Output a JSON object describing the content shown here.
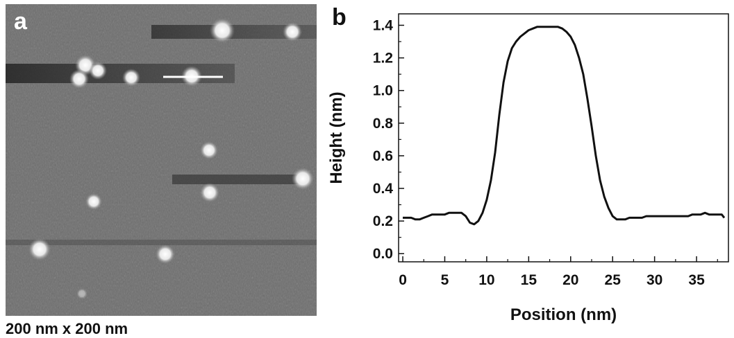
{
  "panel_a": {
    "letter": "a",
    "scale_caption": "200 nm x 200 nm"
  },
  "panel_b": {
    "letter": "b"
  },
  "colors": {
    "afm_background": "#6a6a6a",
    "particle": "#f4f4f4",
    "trace": "#111111",
    "profile_line": "#ffffff"
  },
  "chart_data": {
    "type": "line",
    "xlabel": "Position (nm)",
    "ylabel": "Height (nm)",
    "xlim": [
      -0.5,
      38.8
    ],
    "ylim": [
      -0.05,
      1.47
    ],
    "xticks": [
      0,
      5,
      10,
      15,
      20,
      25,
      30,
      35
    ],
    "yticks": [
      0.0,
      0.2,
      0.4,
      0.6,
      0.8,
      1.0,
      1.2,
      1.4
    ],
    "ytick_labels": [
      "0.0",
      "0.2",
      "0.4",
      "0.6",
      "0.8",
      "1.0",
      "1.2",
      "1.4"
    ],
    "grid": false,
    "series": [
      {
        "x": [
          0,
          0.5,
          1,
          1.5,
          2,
          2.5,
          3,
          3.5,
          4,
          4.5,
          5,
          5.5,
          6,
          6.5,
          7,
          7.5,
          8,
          8.5,
          9,
          9.5,
          10,
          10.5,
          11,
          11.5,
          12,
          12.5,
          13,
          13.5,
          14,
          14.5,
          15,
          15.5,
          16,
          16.5,
          17,
          17.5,
          18,
          18.5,
          19,
          19.5,
          20,
          20.5,
          21,
          21.5,
          22,
          22.5,
          23,
          23.5,
          24,
          24.5,
          25,
          25.5,
          26,
          26.5,
          27,
          27.5,
          28,
          28.5,
          29,
          29.5,
          30,
          30.5,
          31,
          31.5,
          32,
          32.5,
          33,
          33.5,
          34,
          34.5,
          35,
          35.5,
          36,
          36.5,
          37,
          37.5,
          38,
          38.3
        ],
        "y": [
          0.22,
          0.22,
          0.22,
          0.21,
          0.21,
          0.22,
          0.23,
          0.24,
          0.24,
          0.24,
          0.24,
          0.25,
          0.25,
          0.25,
          0.25,
          0.23,
          0.19,
          0.18,
          0.2,
          0.25,
          0.33,
          0.45,
          0.62,
          0.85,
          1.05,
          1.18,
          1.26,
          1.3,
          1.33,
          1.35,
          1.37,
          1.38,
          1.39,
          1.39,
          1.39,
          1.39,
          1.39,
          1.39,
          1.38,
          1.36,
          1.33,
          1.28,
          1.2,
          1.1,
          0.95,
          0.78,
          0.6,
          0.45,
          0.35,
          0.28,
          0.23,
          0.21,
          0.21,
          0.21,
          0.22,
          0.22,
          0.22,
          0.22,
          0.23,
          0.23,
          0.23,
          0.23,
          0.23,
          0.23,
          0.23,
          0.23,
          0.23,
          0.23,
          0.23,
          0.24,
          0.24,
          0.24,
          0.25,
          0.24,
          0.24,
          0.24,
          0.24,
          0.22
        ]
      }
    ]
  }
}
